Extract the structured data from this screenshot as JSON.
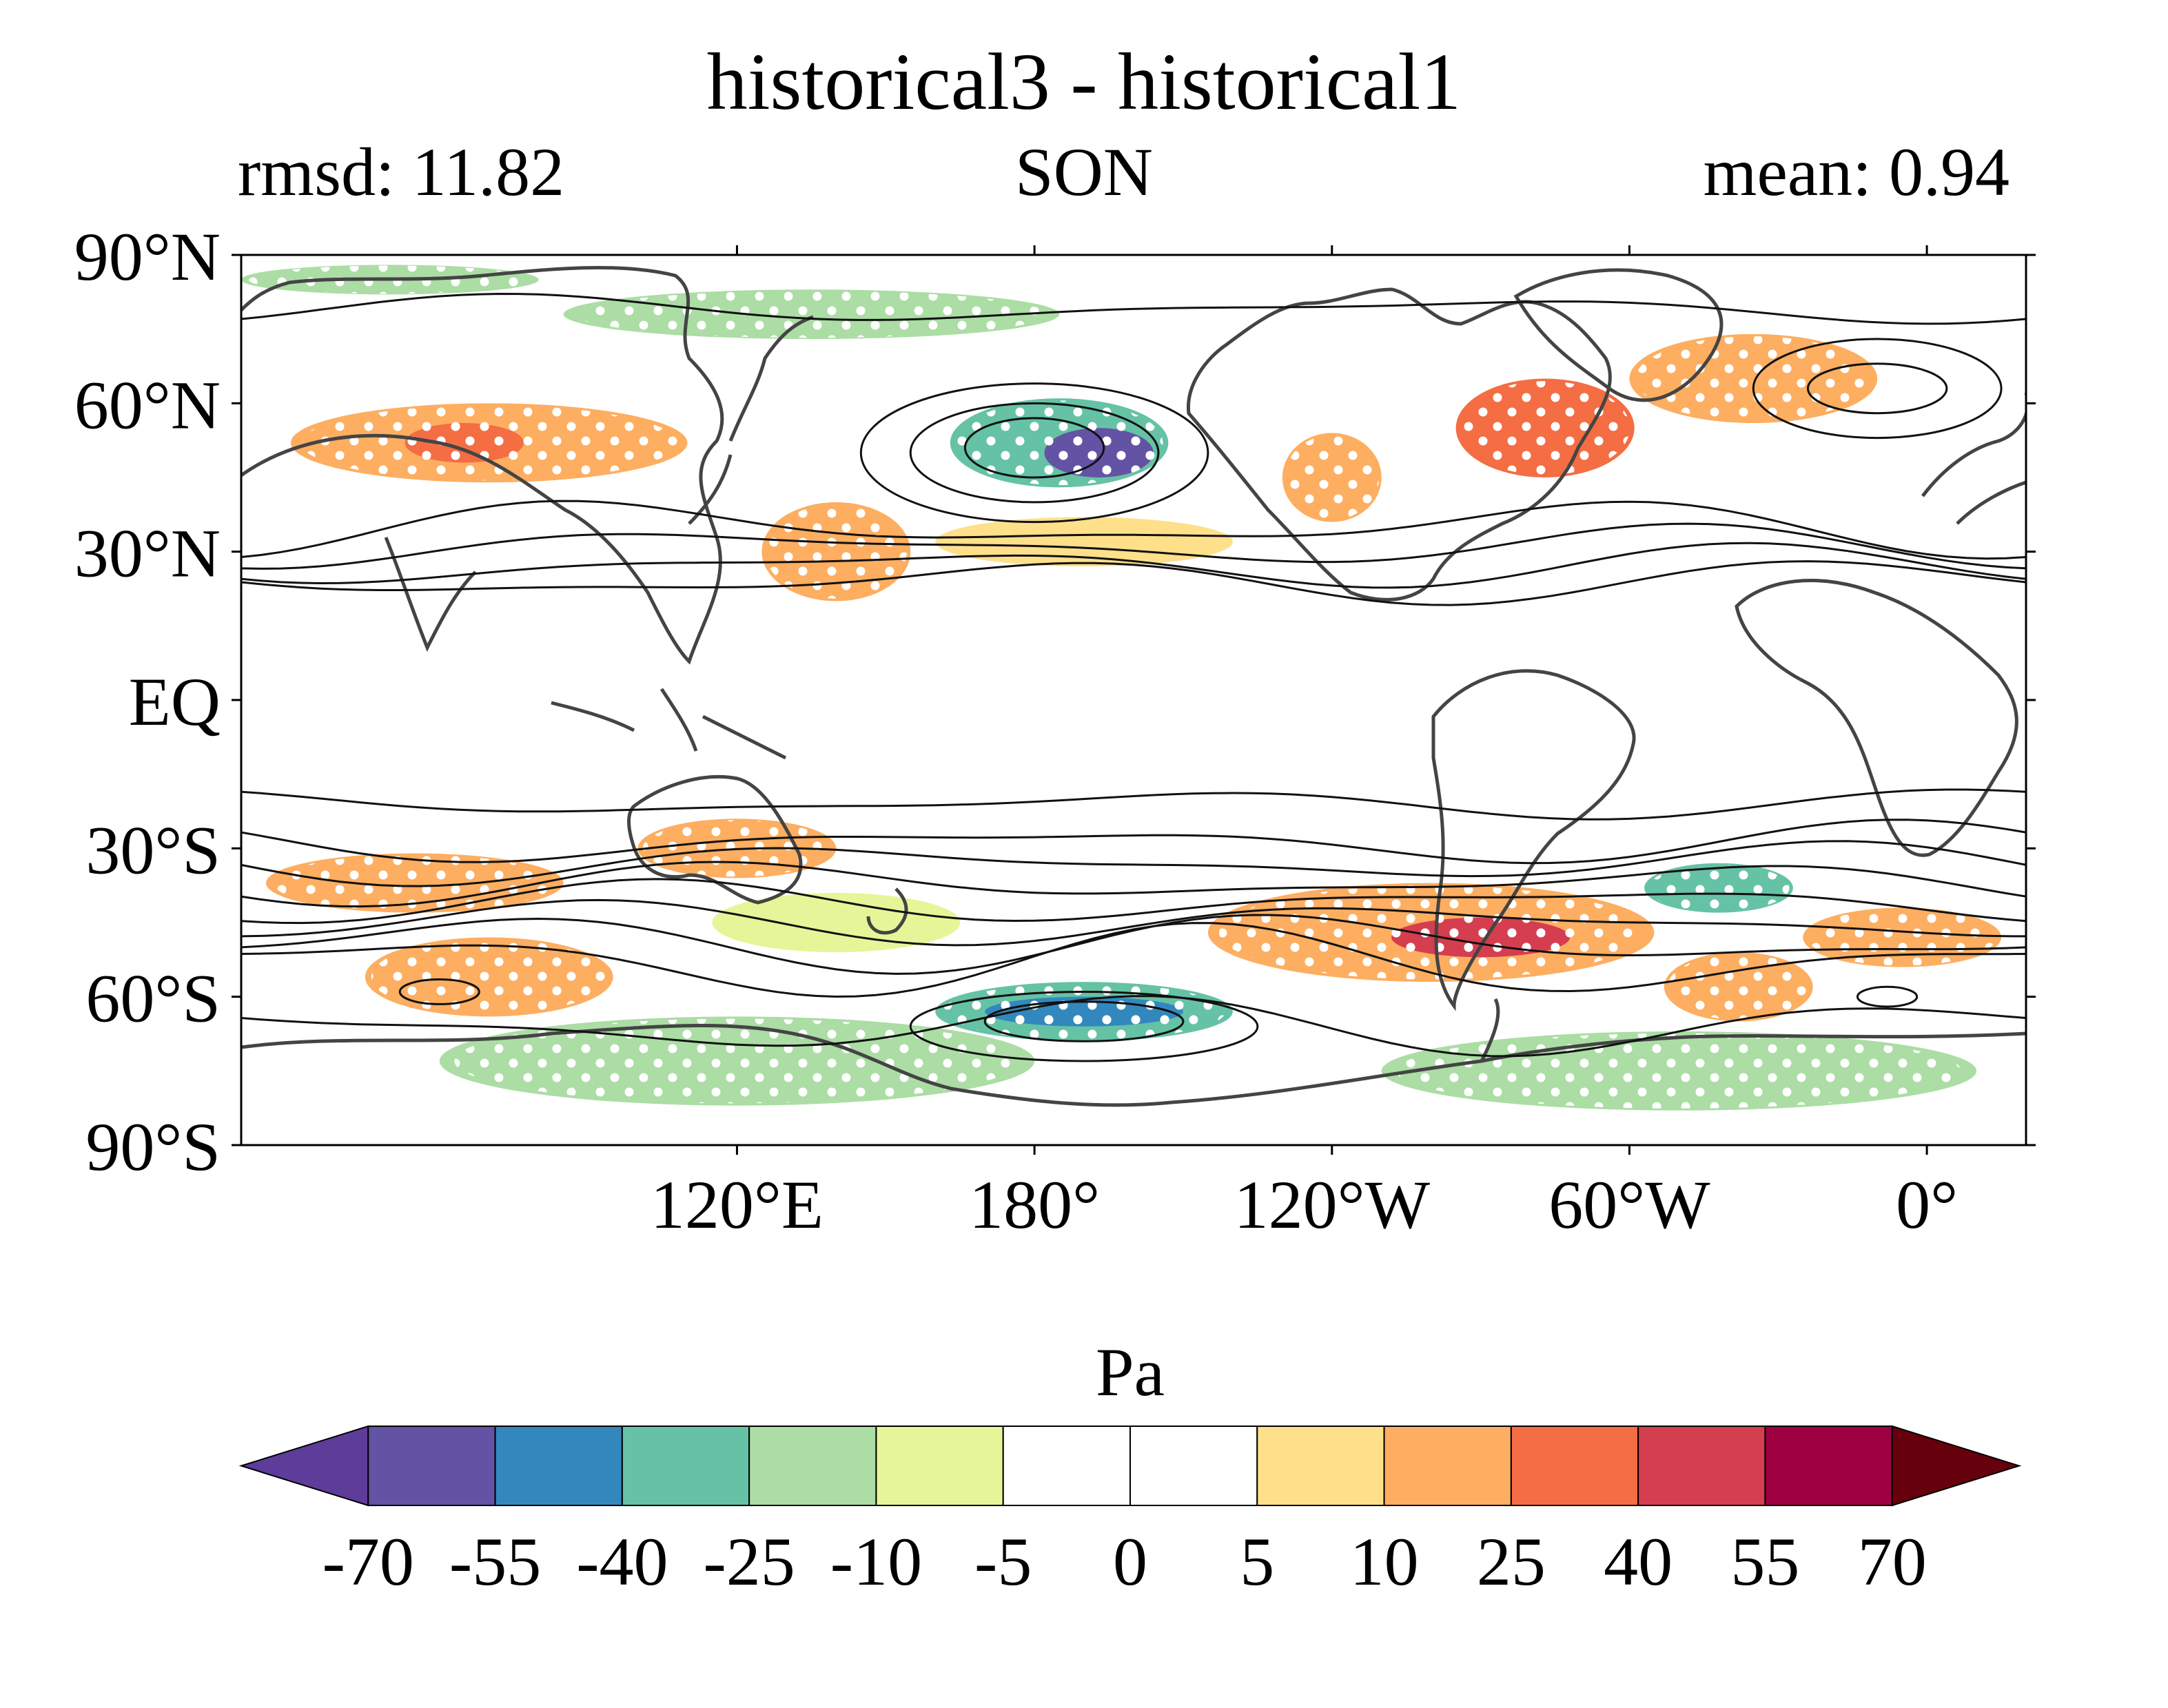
{
  "header": {
    "title": "historical3 - historical1",
    "rmsd": "rmsd: 11.82",
    "season": "SON",
    "mean": "mean: 0.94"
  },
  "map": {
    "projection": "PlateCarree",
    "lon_range": [
      20,
      380
    ],
    "lat_range": [
      -90,
      90
    ],
    "lat_labels": [
      {
        "lat": 90,
        "text": "90°N"
      },
      {
        "lat": 60,
        "text": "60°N"
      },
      {
        "lat": 30,
        "text": "30°N"
      },
      {
        "lat": 0,
        "text": "EQ"
      },
      {
        "lat": -30,
        "text": "30°S"
      },
      {
        "lat": -60,
        "text": "60°S"
      },
      {
        "lat": -90,
        "text": "90°S"
      }
    ],
    "lon_labels": [
      {
        "lon": 120,
        "text": "120°E"
      },
      {
        "lon": 180,
        "text": "180°"
      },
      {
        "lon": 240,
        "text": "120°W"
      },
      {
        "lon": 300,
        "text": "60°W"
      },
      {
        "lon": 360,
        "text": "0°"
      }
    ],
    "anomaly_blobs": [
      {
        "lon": 185,
        "lat": 52,
        "rlon": 22,
        "rlat": 9,
        "value": -30
      },
      {
        "lon": 193,
        "lat": 50,
        "rlon": 11,
        "rlat": 5,
        "value": -58
      },
      {
        "lon": 283,
        "lat": 55,
        "rlon": 18,
        "rlat": 10,
        "value": 30
      },
      {
        "lon": 325,
        "lat": 65,
        "rlon": 25,
        "rlat": 9,
        "value": 18
      },
      {
        "lon": 70,
        "lat": 52,
        "rlon": 40,
        "rlat": 8,
        "value": 18
      },
      {
        "lon": 65,
        "lat": 52,
        "rlon": 12,
        "rlat": 4,
        "value": 32
      },
      {
        "lon": 240,
        "lat": 45,
        "rlon": 10,
        "rlat": 9,
        "value": 20
      },
      {
        "lon": 140,
        "lat": 30,
        "rlon": 15,
        "rlat": 10,
        "value": 15
      },
      {
        "lon": 190,
        "lat": 32,
        "rlon": 30,
        "rlat": 5,
        "value": 8
      },
      {
        "lon": 135,
        "lat": 78,
        "rlon": 50,
        "rlat": 5,
        "value": -12
      },
      {
        "lon": 50,
        "lat": 85,
        "rlon": 30,
        "rlat": 3,
        "value": -15
      },
      {
        "lon": 55,
        "lat": -37,
        "rlon": 30,
        "rlat": 6,
        "value": 18
      },
      {
        "lon": 70,
        "lat": -56,
        "rlon": 25,
        "rlat": 8,
        "value": 15
      },
      {
        "lon": 260,
        "lat": -47,
        "rlon": 45,
        "rlat": 10,
        "value": 22
      },
      {
        "lon": 270,
        "lat": -48,
        "rlon": 18,
        "rlat": 4,
        "value": 45
      },
      {
        "lon": 318,
        "lat": -38,
        "rlon": 15,
        "rlat": 5,
        "value": -32
      },
      {
        "lon": 322,
        "lat": -58,
        "rlon": 15,
        "rlat": 7,
        "value": 18
      },
      {
        "lon": 355,
        "lat": -48,
        "rlon": 20,
        "rlat": 6,
        "value": 15
      },
      {
        "lon": 190,
        "lat": -63,
        "rlon": 30,
        "rlat": 6,
        "value": -32
      },
      {
        "lon": 190,
        "lat": -63,
        "rlon": 20,
        "rlat": 3,
        "value": -45
      },
      {
        "lon": 120,
        "lat": -73,
        "rlon": 60,
        "rlat": 9,
        "value": -15
      },
      {
        "lon": 310,
        "lat": -75,
        "rlon": 60,
        "rlat": 8,
        "value": -12
      },
      {
        "lon": 140,
        "lat": -45,
        "rlon": 25,
        "rlat": 6,
        "value": -8
      },
      {
        "lon": 120,
        "lat": -30,
        "rlon": 20,
        "rlat": 6,
        "value": 12
      }
    ],
    "contours": [
      {
        "type": "ellipse",
        "lon": 180,
        "lat": 50,
        "rlon": 35,
        "rlat": 14
      },
      {
        "type": "ellipse",
        "lon": 180,
        "lat": 50,
        "rlon": 25,
        "rlat": 10
      },
      {
        "type": "ellipse",
        "lon": 180,
        "lat": 51,
        "rlon": 14,
        "rlat": 6
      },
      {
        "type": "ellipse",
        "lon": 350,
        "lat": 63,
        "rlon": 25,
        "rlat": 10
      },
      {
        "type": "ellipse",
        "lon": 350,
        "lat": 63,
        "rlon": 14,
        "rlat": 5
      },
      {
        "type": "ellipse",
        "lon": 60,
        "lat": -59,
        "rlon": 8,
        "rlat": 2.5
      },
      {
        "type": "ellipse",
        "lon": 190,
        "lat": -66,
        "rlon": 35,
        "rlat": 7
      },
      {
        "type": "ellipse",
        "lon": 190,
        "lat": -65,
        "rlon": 20,
        "rlat": 4
      },
      {
        "type": "ellipse",
        "lon": 352,
        "lat": -60,
        "rlon": 6,
        "rlat": 2
      },
      {
        "type": "band",
        "lat": -21,
        "amp": 2
      },
      {
        "type": "band",
        "lat": -29,
        "amp": 3
      },
      {
        "type": "band",
        "lat": -33,
        "amp": 3
      },
      {
        "type": "band",
        "lat": -37,
        "amp": 3
      },
      {
        "type": "band",
        "lat": -41,
        "amp": 3
      },
      {
        "type": "band",
        "lat": -45,
        "amp": 3
      },
      {
        "type": "band",
        "lat": -49,
        "amp": 4
      },
      {
        "type": "band",
        "lat": -53,
        "amp": 5
      },
      {
        "type": "band",
        "lat": -66,
        "amp": 4
      },
      {
        "type": "band",
        "lat": 24,
        "amp": 3
      },
      {
        "type": "band",
        "lat": 27,
        "amp": 3
      },
      {
        "type": "band",
        "lat": 31,
        "amp": 3
      },
      {
        "type": "band",
        "lat": 35,
        "amp": 4
      },
      {
        "type": "band",
        "lat": 79,
        "amp": 2
      }
    ]
  },
  "colorbar": {
    "label": "Pa",
    "levels": [
      -70,
      -55,
      -40,
      -25,
      -10,
      -5,
      0,
      5,
      10,
      25,
      40,
      55,
      70
    ],
    "tick_labels": [
      "-70",
      "-55",
      "-40",
      "-25",
      "-10",
      "-5",
      "0",
      "5",
      "10",
      "25",
      "40",
      "55",
      "70"
    ],
    "under_color": "#5e3c99",
    "over_color": "#67000d",
    "colors": [
      "#6353a5",
      "#3288bd",
      "#66c2a5",
      "#abdda4",
      "#e6f598",
      "#ffffff",
      "#ffffff",
      "#fee08b",
      "#fdae61",
      "#f46d43",
      "#d53e4f",
      "#9e0142"
    ]
  }
}
